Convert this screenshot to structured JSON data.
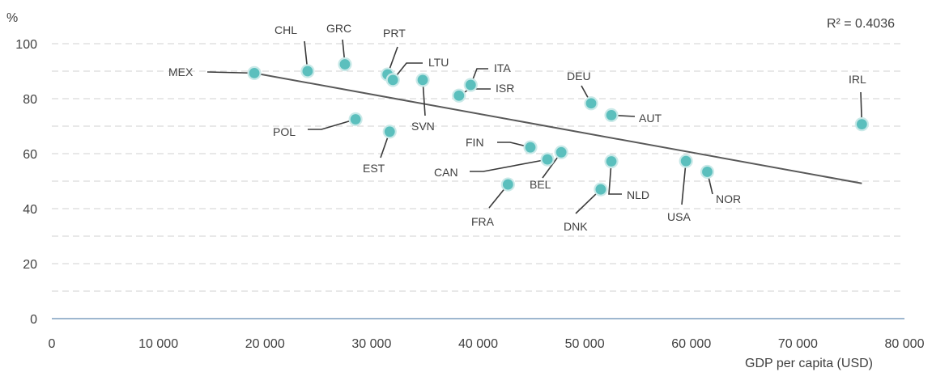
{
  "chart_data": {
    "type": "scatter",
    "ylabel": "%",
    "xlabel": "GDP per capita (USD)",
    "xlim": [
      0,
      80000
    ],
    "ylim": [
      0,
      100
    ],
    "x_ticks": [
      0,
      10000,
      20000,
      30000,
      40000,
      50000,
      60000,
      70000,
      80000
    ],
    "x_tick_labels": [
      "0",
      "10 000",
      "20 000",
      "30 000",
      "40 000",
      "50 000",
      "60 000",
      "70 000",
      "80 000"
    ],
    "y_ticks": [
      0,
      20,
      40,
      60,
      80,
      100
    ],
    "y_tick_labels": [
      "0",
      "20",
      "40",
      "60",
      "80",
      "100"
    ],
    "grid": true,
    "point_color": "#5bbfbd",
    "trendline": {
      "x": [
        19000,
        76000
      ],
      "y": [
        89.3,
        49.2
      ],
      "color": "#595959"
    },
    "annotation": "R² = 0.4036",
    "points": [
      {
        "label": "MEX",
        "x": 19000,
        "y": 89.3
      },
      {
        "label": "CHL",
        "x": 24000,
        "y": 90.0
      },
      {
        "label": "GRC",
        "x": 27500,
        "y": 92.5
      },
      {
        "label": "POL",
        "x": 28500,
        "y": 72.5
      },
      {
        "label": "PRT",
        "x": 31500,
        "y": 88.8
      },
      {
        "label": "EST",
        "x": 31700,
        "y": 68.0
      },
      {
        "label": "LTU",
        "x": 32000,
        "y": 86.8
      },
      {
        "label": "SVN",
        "x": 34800,
        "y": 86.8
      },
      {
        "label": "ISR",
        "x": 38200,
        "y": 81.1
      },
      {
        "label": "ITA",
        "x": 39300,
        "y": 85.0
      },
      {
        "label": "FRA",
        "x": 42800,
        "y": 48.8
      },
      {
        "label": "FIN",
        "x": 44900,
        "y": 62.3
      },
      {
        "label": "CAN",
        "x": 46500,
        "y": 57.9
      },
      {
        "label": "BEL",
        "x": 47800,
        "y": 60.5
      },
      {
        "label": "DEU",
        "x": 50600,
        "y": 78.3
      },
      {
        "label": "DNK",
        "x": 51500,
        "y": 47.0
      },
      {
        "label": "AUT",
        "x": 52500,
        "y": 74.0
      },
      {
        "label": "NLD",
        "x": 52500,
        "y": 57.2
      },
      {
        "label": "USA",
        "x": 59500,
        "y": 57.3
      },
      {
        "label": "NOR",
        "x": 61500,
        "y": 53.4
      },
      {
        "label": "IRL",
        "x": 76000,
        "y": 70.7
      }
    ]
  }
}
